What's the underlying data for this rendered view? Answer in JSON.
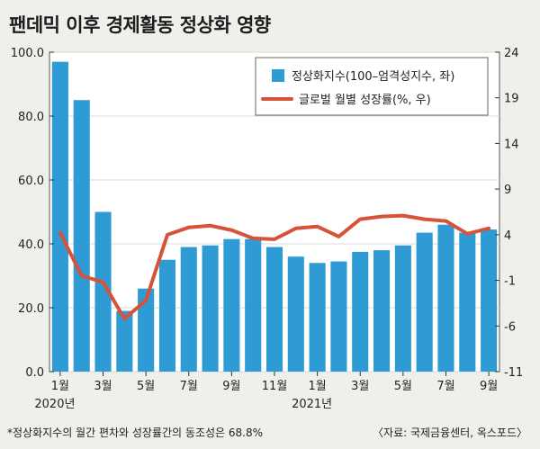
{
  "title": "팬데믹 이후 경제활동 정상화 영향",
  "footnote": "*정상화지수의 월간 편차와 성장률간의 동조성은 68.8%",
  "source": "〈자료: 국제금융센터, 옥스포드〉",
  "colors": {
    "bar": "#2f9bd4",
    "line": "#d6533a",
    "background": "#efefeb",
    "plot_bg": "#ffffff"
  },
  "chart_data": {
    "type": "bar+line",
    "categories": [
      "2020-01",
      "2020-02",
      "2020-03",
      "2020-04",
      "2020-05",
      "2020-06",
      "2020-07",
      "2020-08",
      "2020-09",
      "2020-10",
      "2020-11",
      "2020-12",
      "2021-01",
      "2021-02",
      "2021-03",
      "2021-04",
      "2021-05",
      "2021-06",
      "2021-07",
      "2021-08",
      "2021-09"
    ],
    "x_tick_labels": [
      {
        "index": 0,
        "label": "1월",
        "sublabel": "2020년"
      },
      {
        "index": 2,
        "label": "3월"
      },
      {
        "index": 4,
        "label": "5월"
      },
      {
        "index": 6,
        "label": "7월"
      },
      {
        "index": 8,
        "label": "9월"
      },
      {
        "index": 10,
        "label": "11월"
      },
      {
        "index": 12,
        "label": "1월",
        "sublabel": "2021년"
      },
      {
        "index": 14,
        "label": "3월"
      },
      {
        "index": 16,
        "label": "5월"
      },
      {
        "index": 18,
        "label": "7월"
      },
      {
        "index": 20,
        "label": "9월"
      }
    ],
    "series": [
      {
        "name": "정상화지수(100–엄격성지수, 좌)",
        "type": "bar",
        "axis": "left",
        "values": [
          97,
          85,
          50,
          19,
          26,
          35,
          39,
          39.5,
          41.5,
          41.5,
          39,
          36,
          34,
          34.5,
          37.5,
          38,
          39.5,
          43.5,
          46,
          43.5,
          44.5
        ]
      },
      {
        "name": "글로벌 월별 성장률(%, 우)",
        "type": "line",
        "axis": "right",
        "values": [
          4.2,
          -0.5,
          -1.2,
          -5.2,
          -3.2,
          4.0,
          4.8,
          5.0,
          4.5,
          3.6,
          3.5,
          4.7,
          4.9,
          3.8,
          5.7,
          6.0,
          6.1,
          5.7,
          5.5,
          4.1,
          4.7
        ]
      }
    ],
    "y_left": {
      "ticks": [
        "0.0",
        "20.0",
        "40.0",
        "60.0",
        "80.0",
        "100.0"
      ],
      "range": [
        0,
        100
      ]
    },
    "y_right": {
      "ticks": [
        "-11",
        "-6",
        "-1",
        "4",
        "9",
        "14",
        "19",
        "24"
      ],
      "range": [
        -11,
        24
      ]
    },
    "legend": "top-right"
  }
}
